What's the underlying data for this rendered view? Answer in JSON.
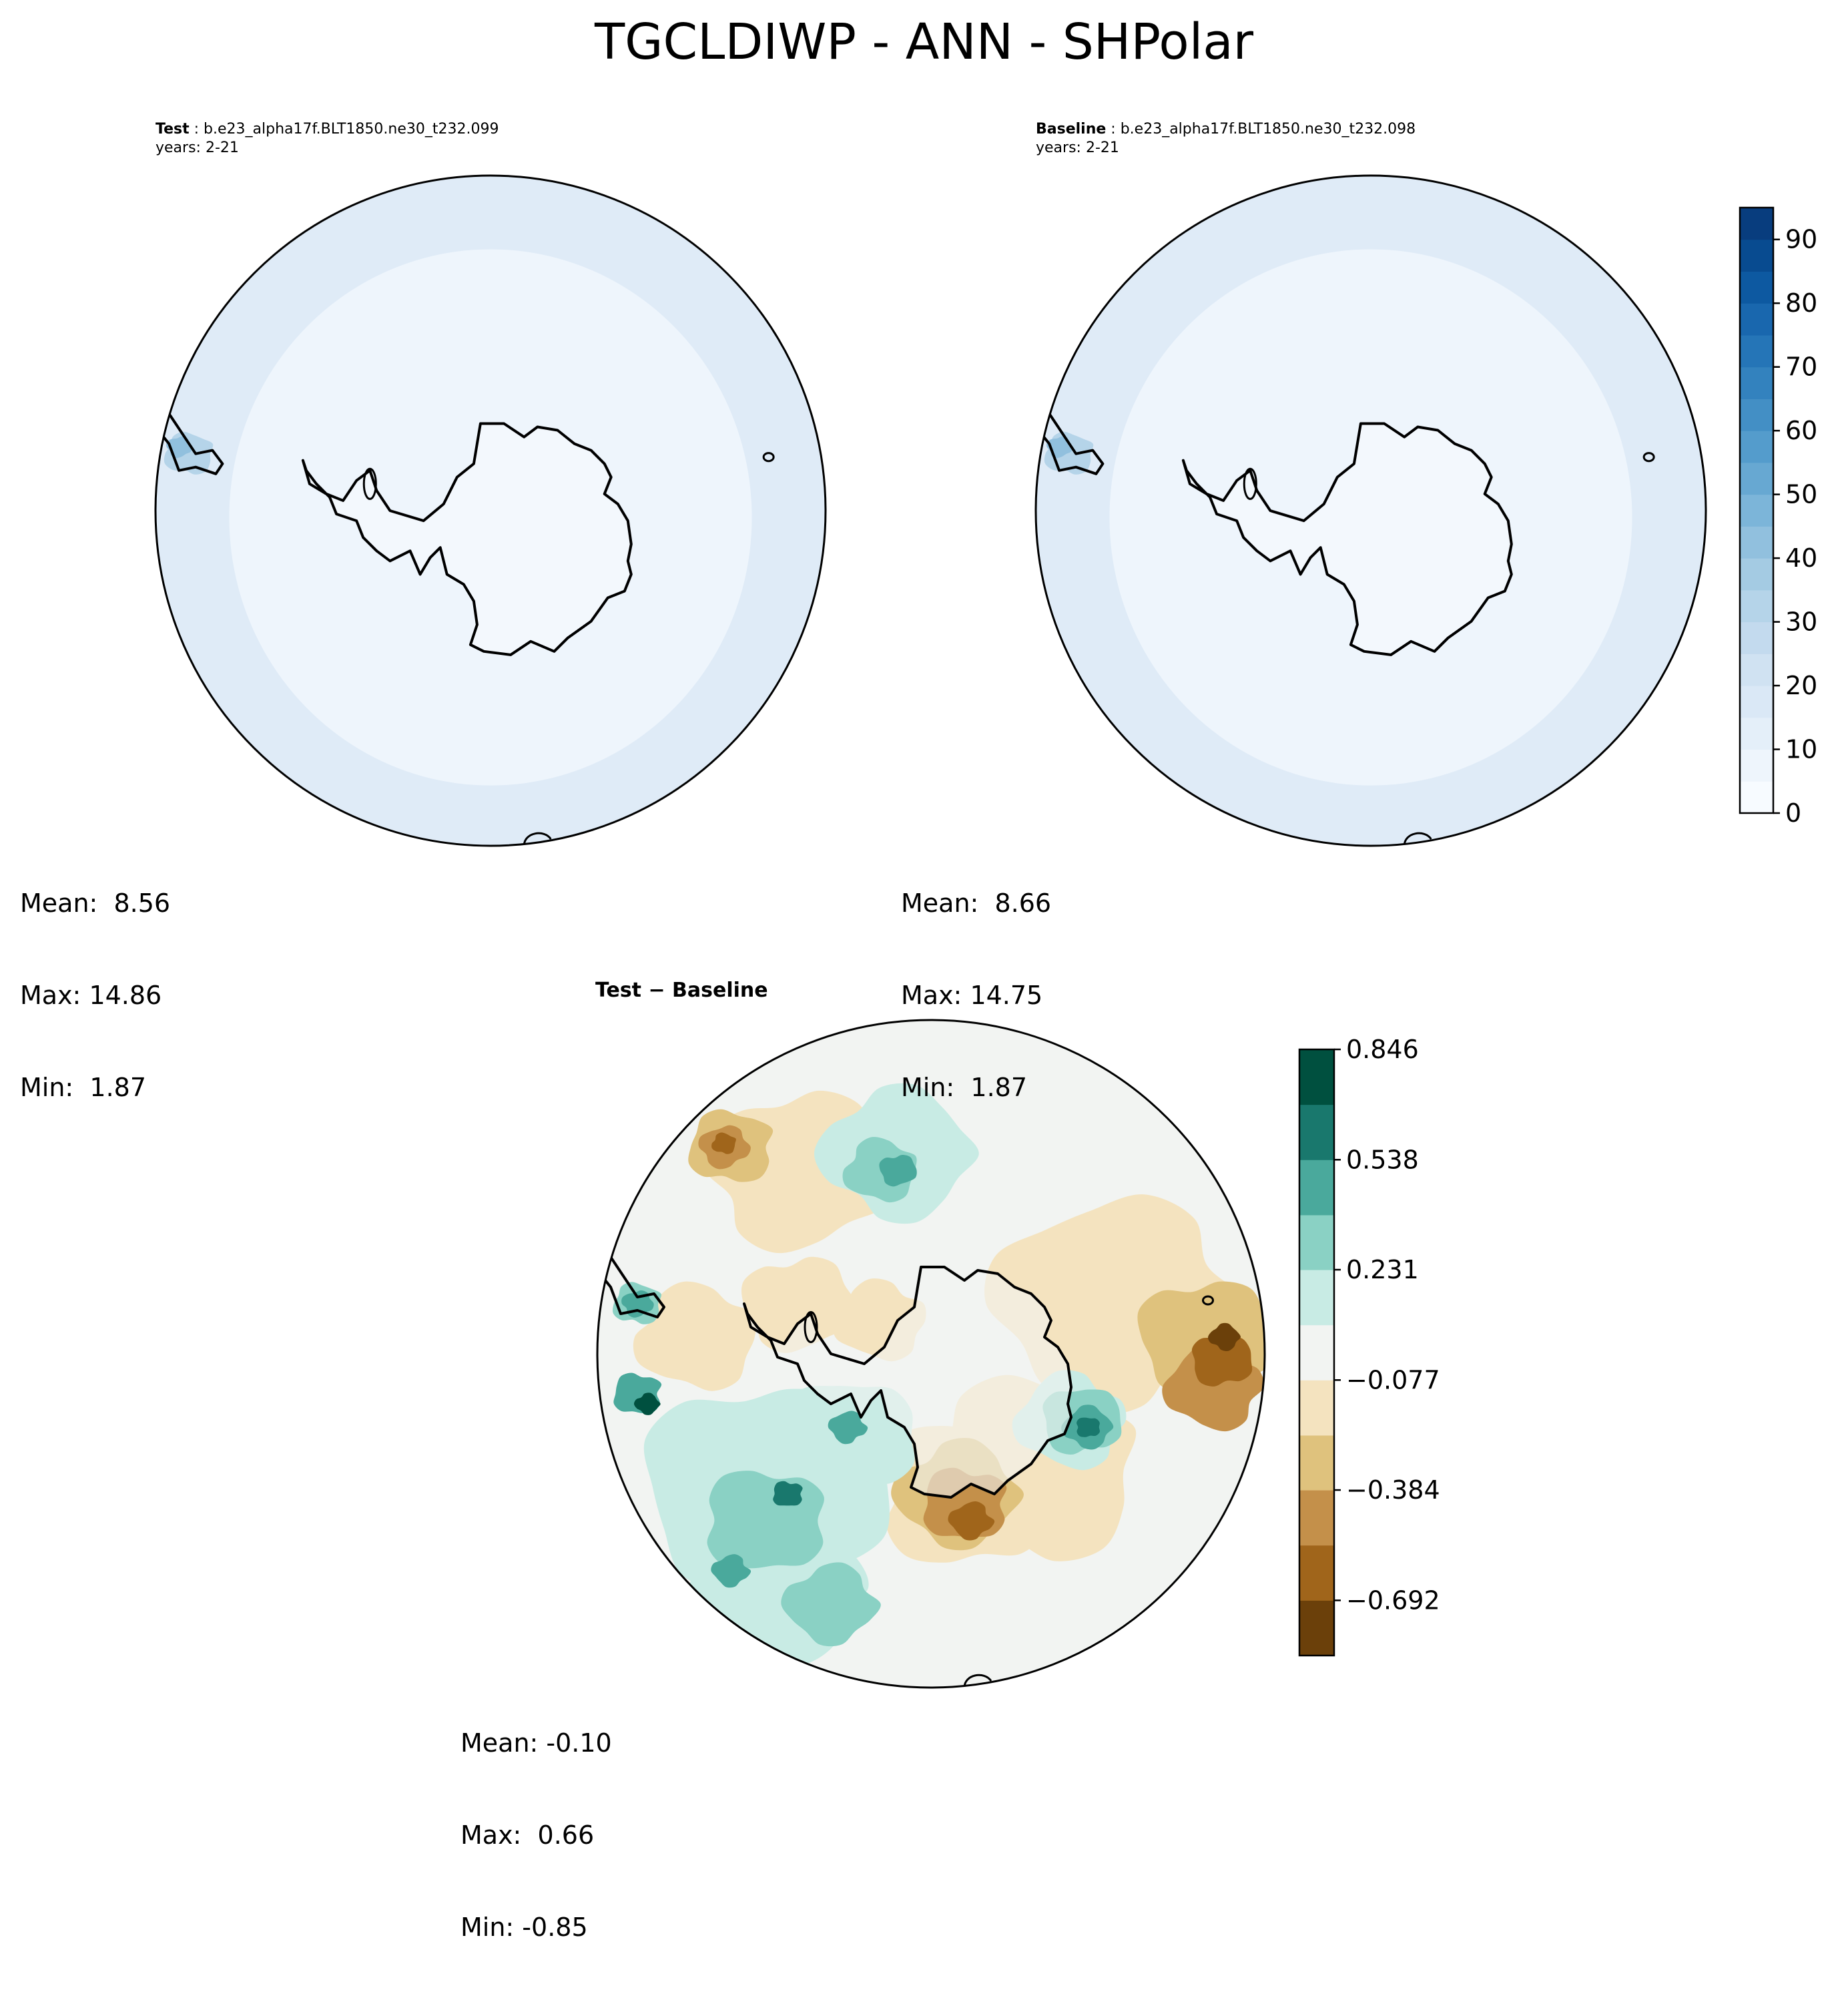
{
  "figure": {
    "title": "TGCLDIWP - ANN - SHPolar"
  },
  "panels": [
    {
      "id": "test",
      "label": "Test",
      "case": "b.e23_alpha17f.BLT1850.ne30_t232.099",
      "years": "years: 2-21",
      "stats": {
        "mean": "Mean:  8.56",
        "max": "Max: 14.86",
        "min": "Min:  1.87"
      }
    },
    {
      "id": "baseline",
      "label": "Baseline",
      "case": "b.e23_alpha17f.BLT1850.ne30_t232.098",
      "years": "years: 2-21",
      "stats": {
        "mean": "Mean:  8.66",
        "max": "Max: 14.75",
        "min": "Min:  1.87"
      }
    },
    {
      "id": "diff",
      "label": "Test − Baseline",
      "stats": {
        "mean": "Mean: -0.10",
        "max": "Max:  0.66",
        "min": "Min: -0.85"
      }
    }
  ],
  "chart_data": [
    {
      "type": "heatmap",
      "projection": "south-polar-stereographic",
      "title": "Test",
      "subtitle": "b.e23_alpha17f.BLT1850.ne30_t232.099",
      "years": "2-21",
      "mean": 8.56,
      "max": 14.86,
      "min": 1.87,
      "colormap": "Blues",
      "colorbar": {
        "levels": [
          0,
          5,
          10,
          15,
          20,
          25,
          30,
          35,
          40,
          45,
          50,
          55,
          60,
          65,
          70,
          75,
          80,
          85,
          90,
          95
        ],
        "ticks": [
          "0",
          "10",
          "20",
          "30",
          "40",
          "50",
          "60",
          "70",
          "80",
          "90"
        ]
      }
    },
    {
      "type": "heatmap",
      "projection": "south-polar-stereographic",
      "title": "Baseline",
      "subtitle": "b.e23_alpha17f.BLT1850.ne30_t232.098",
      "years": "2-21",
      "mean": 8.66,
      "max": 14.75,
      "min": 1.87,
      "colormap": "Blues",
      "colorbar": {
        "levels": [
          0,
          5,
          10,
          15,
          20,
          25,
          30,
          35,
          40,
          45,
          50,
          55,
          60,
          65,
          70,
          75,
          80,
          85,
          90,
          95
        ],
        "ticks": [
          "0",
          "10",
          "20",
          "30",
          "40",
          "50",
          "60",
          "70",
          "80",
          "90"
        ]
      }
    },
    {
      "type": "heatmap",
      "projection": "south-polar-stereographic",
      "title": "Test − Baseline",
      "mean": -0.1,
      "max": 0.66,
      "min": -0.85,
      "colormap": "BrBG",
      "colorbar": {
        "levels": [
          -0.846,
          -0.692,
          -0.538,
          -0.384,
          -0.231,
          -0.077,
          0.077,
          0.231,
          0.384,
          0.538,
          0.692,
          0.846
        ],
        "ticks": [
          "0.846",
          "0.538",
          "0.231",
          "−0.077",
          "−0.384",
          "−0.692"
        ]
      }
    }
  ],
  "colors": {
    "blues": [
      "#f7fbff",
      "#eef5fc",
      "#e4eff9",
      "#dae8f6",
      "#d0e2f2",
      "#c3daee",
      "#b5d4e9",
      "#a4cbe3",
      "#91c0de",
      "#7cb5d9",
      "#67a8d2",
      "#549ccc",
      "#438fc5",
      "#3382be",
      "#2575b7",
      "#1967ae",
      "#0d59a1",
      "#084b90",
      "#083d7e",
      "#08306b"
    ],
    "map_light": "#eef5fc",
    "map_mid": "#dfebf7",
    "map_land": "#f3f8fd",
    "brbg": [
      "#6b400a",
      "#a0651b",
      "#c4904a",
      "#dfc27d",
      "#f4e3bf",
      "#f2f4f2",
      "#c8ebe4",
      "#8ad1c4",
      "#4aa99c",
      "#19786d",
      "#00503f"
    ]
  }
}
